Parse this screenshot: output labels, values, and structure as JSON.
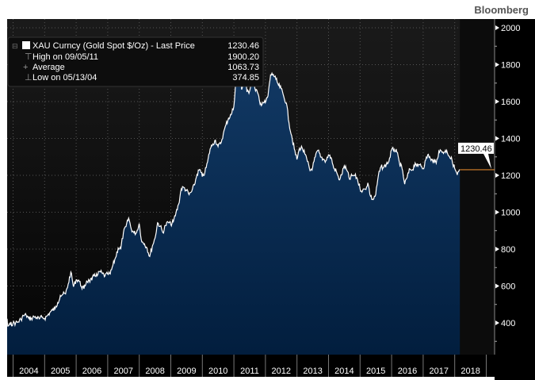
{
  "brand": "Bloomberg",
  "legend": {
    "title": "XAU Curncy (Gold Spot $/Oz)",
    "sep": "-",
    "last_label": "Last Price",
    "last_value": "1230.46",
    "high_label": "High on 09/05/11",
    "high_value": "1900.20",
    "avg_label": "Average",
    "avg_value": "1063.73",
    "low_label": "Low on 05/13/04",
    "low_value": "374.85"
  },
  "chart_data": {
    "type": "area",
    "title": "",
    "xlabel": "",
    "ylabel": "",
    "ylim": [
      230,
      2050
    ],
    "y_ticks": [
      "400",
      "600",
      "800",
      "1000",
      "1200",
      "1400",
      "1600",
      "1800",
      "2000"
    ],
    "x_ticks": [
      "2004",
      "2005",
      "2006",
      "2007",
      "2008",
      "2009",
      "2010",
      "2011",
      "2012",
      "2013",
      "2014",
      "2015",
      "2016",
      "2017",
      "2018"
    ],
    "y_axis_side": "right",
    "grid": true,
    "last_price_marker": "1230.46",
    "colors": {
      "line": "#ffffff",
      "fill": "#0b2a4e",
      "last_marker": "#d9822b",
      "background": "#141414"
    },
    "series": [
      {
        "start": "2003-11",
        "frequency": "monthly",
        "values": [
          390,
          407,
          414,
          405,
          406,
          404,
          383,
          392,
          398,
          400,
          405,
          420,
          439,
          442,
          424,
          423,
          434,
          429,
          422,
          431,
          424,
          438,
          456,
          469,
          476,
          510,
          549,
          555,
          557,
          610,
          676,
          596,
          633,
          632,
          598,
          585,
          627,
          629,
          631,
          665,
          655,
          679,
          667,
          655,
          665,
          665,
          712,
          754,
          806,
          803,
          889,
          922,
          968,
          909,
          888,
          890,
          939,
          839,
          829,
          806,
          760,
          816,
          858,
          943,
          924,
          890,
          928,
          946,
          934,
          949,
          996,
          1043,
          1127,
          1134,
          1118,
          1095,
          1113,
          1148,
          1205,
          1232,
          1193,
          1215,
          1271,
          1343,
          1370,
          1391,
          1356,
          1372,
          1424,
          1473,
          1510,
          1529,
          1572,
          1756,
          1880,
          1665,
          1739,
          1652,
          1656,
          1742,
          1673,
          1650,
          1585,
          1596,
          1594,
          1630,
          1745,
          1747,
          1721,
          1688,
          1670,
          1627,
          1592,
          1485,
          1414,
          1343,
          1286,
          1347,
          1349,
          1316,
          1275,
          1225,
          1244,
          1300,
          1336,
          1299,
          1288,
          1279,
          1311,
          1296,
          1239,
          1222,
          1176,
          1202,
          1251,
          1227,
          1179,
          1198,
          1199,
          1181,
          1128,
          1117,
          1125,
          1159,
          1086,
          1068,
          1097,
          1199,
          1246,
          1242,
          1260,
          1276,
          1337,
          1341,
          1326,
          1267,
          1236,
          1152,
          1192,
          1234,
          1231,
          1267,
          1246,
          1261,
          1236,
          1283,
          1314,
          1280,
          1283,
          1265,
          1331,
          1331,
          1325,
          1335,
          1303,
          1282,
          1238,
          1202,
          1230
        ]
      }
    ]
  }
}
